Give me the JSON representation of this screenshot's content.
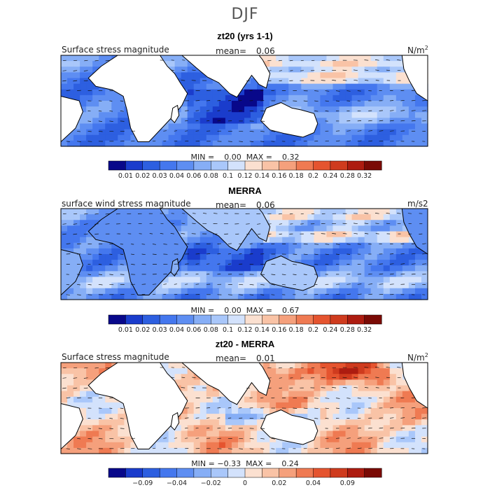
{
  "title": "DJF",
  "colors": {
    "scale": [
      "#08088a",
      "#1a3ccc",
      "#2d5fe0",
      "#4477ee",
      "#5e8ef2",
      "#86aef6",
      "#a9c7fa",
      "#d3e2fc",
      "#fbe0d0",
      "#f9c3a6",
      "#f5a07c",
      "#ef7a52",
      "#e5542f",
      "#cf3b1e",
      "#ad1c10",
      "#7a0a05"
    ],
    "land": "#ffffff"
  },
  "panels": [
    {
      "title": "zt20 (yrs 1-1)",
      "variable": "Surface stress magnitude",
      "mean_label": "mean=",
      "mean_value": "0.06",
      "units": "N/m",
      "units_sup": "2",
      "stats": "MIN =    0.00  MAX =    0.32",
      "colorbar_labels": [
        "0.01",
        "0.02",
        "0.03",
        "0.04",
        "0.06",
        "0.08",
        "0.1",
        "0.12",
        "0.14",
        "0.16",
        "0.18",
        "0.2",
        "0.24",
        "0.28",
        "0.32"
      ]
    },
    {
      "title": "MERRA",
      "variable": "surface wind stress magnitude",
      "mean_label": "mean=",
      "mean_value": "0.06",
      "units": "m/s2",
      "units_sup": "",
      "stats": "MIN =    0.00  MAX =    0.67",
      "colorbar_labels": [
        "0.01",
        "0.02",
        "0.03",
        "0.04",
        "0.06",
        "0.08",
        "0.1",
        "0.12",
        "0.14",
        "0.16",
        "0.18",
        "0.2",
        "0.24",
        "0.28",
        "0.32"
      ]
    },
    {
      "title": "zt20 - MERRA",
      "variable": "Surface stress magnitude",
      "mean_label": "mean=",
      "mean_value": "0.01",
      "units": "N/m",
      "units_sup": "2",
      "stats": "MIN = −0.33  MAX =    0.24",
      "colorbar_labels": [
        "−0.09",
        "−0.04",
        "−0.02",
        "0",
        "0.02",
        "0.04",
        "0.09"
      ]
    }
  ],
  "chart_data": [
    {
      "type": "heatmap",
      "title": "zt20 (yrs 1-1)",
      "field": "Surface stress magnitude",
      "mean": 0.06,
      "min": 0.0,
      "max": 0.32,
      "units": "N/m2",
      "season": "DJF",
      "levels": [
        0.01,
        0.02,
        0.03,
        0.04,
        0.06,
        0.08,
        0.1,
        0.12,
        0.14,
        0.16,
        0.18,
        0.2,
        0.24,
        0.28,
        0.32
      ]
    },
    {
      "type": "heatmap",
      "title": "MERRA",
      "field": "surface wind stress magnitude",
      "mean": 0.06,
      "min": 0.0,
      "max": 0.67,
      "units": "m/s2",
      "season": "DJF",
      "levels": [
        0.01,
        0.02,
        0.03,
        0.04,
        0.06,
        0.08,
        0.1,
        0.12,
        0.14,
        0.16,
        0.18,
        0.2,
        0.24,
        0.28,
        0.32
      ]
    },
    {
      "type": "heatmap",
      "title": "zt20 - MERRA",
      "field": "Surface stress magnitude",
      "mean": 0.01,
      "min": -0.33,
      "max": 0.24,
      "units": "N/m2",
      "season": "DJF",
      "levels": [
        -0.09,
        -0.04,
        -0.02,
        0,
        0.02,
        0.04,
        0.09
      ]
    }
  ]
}
